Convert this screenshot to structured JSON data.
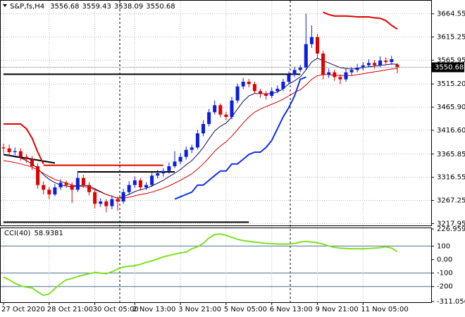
{
  "chart_data": {
    "type": "candlestick",
    "title": "S&P,fs,H4",
    "up_color": "#0a1ee0",
    "down_color": "#e00000",
    "ylim": [
      3214,
      3694
    ],
    "yticks": [
      3664.55,
      3615.25,
      3565.95,
      {
        "value": 3515.2,
        "label": "3515.20"
      },
      {
        "value": 3465.9,
        "label": "3465.90"
      },
      {
        "value": 3416.6,
        "label": "3416.60"
      },
      3365.85,
      3316.55,
      3267.25,
      3217.95
    ],
    "grid": true,
    "xlabels": [
      {
        "at": 0,
        "label": "27 Oct 2020"
      },
      {
        "at": 8,
        "label": "28 Oct 21:00"
      },
      {
        "at": 16,
        "label": "30 Oct 05:00"
      },
      {
        "at": 23,
        "label": "2 Nov 13:00"
      },
      {
        "at": 31,
        "label": "3 Nov 21:00"
      },
      {
        "at": 39,
        "label": "5 Nov 05:00"
      },
      {
        "at": 47,
        "label": "6 Nov 13:00"
      },
      {
        "at": 55,
        "label": "9 Nov 21:00"
      },
      {
        "at": 63,
        "label": "11 Nov 05:00"
      }
    ],
    "candles": [
      [
        3380,
        3388,
        3368,
        3378
      ],
      [
        3378,
        3386,
        3362,
        3370
      ],
      [
        3370,
        3380,
        3364,
        3372
      ],
      [
        3372,
        3378,
        3352,
        3360
      ],
      [
        3360,
        3366,
        3347,
        3355
      ],
      [
        3355,
        3362,
        3332,
        3340
      ],
      [
        3340,
        3346,
        3292,
        3300
      ],
      [
        3300,
        3308,
        3280,
        3290
      ],
      [
        3290,
        3296,
        3270,
        3280
      ],
      [
        3280,
        3302,
        3276,
        3295
      ],
      [
        3295,
        3312,
        3290,
        3305
      ],
      [
        3305,
        3310,
        3294,
        3300
      ],
      [
        3300,
        3306,
        3262,
        3290
      ],
      [
        3290,
        3330,
        3285,
        3315
      ],
      [
        3315,
        3322,
        3294,
        3300
      ],
      [
        3300,
        3306,
        3278,
        3285
      ],
      [
        3285,
        3290,
        3250,
        3260
      ],
      [
        3260,
        3272,
        3254,
        3265
      ],
      [
        3265,
        3270,
        3242,
        3255
      ],
      [
        3255,
        3278,
        3248,
        3270
      ],
      [
        3270,
        3276,
        3245,
        3265
      ],
      [
        3265,
        3292,
        3260,
        3285
      ],
      [
        3285,
        3308,
        3280,
        3300
      ],
      [
        3300,
        3318,
        3294,
        3310
      ],
      [
        3310,
        3315,
        3288,
        3295
      ],
      [
        3295,
        3306,
        3290,
        3300
      ],
      [
        3300,
        3326,
        3296,
        3320
      ],
      [
        3320,
        3332,
        3314,
        3325
      ],
      [
        3325,
        3336,
        3318,
        3330
      ],
      [
        3330,
        3348,
        3324,
        3340
      ],
      [
        3340,
        3372,
        3336,
        3350
      ],
      [
        3350,
        3368,
        3344,
        3360
      ],
      [
        3360,
        3382,
        3354,
        3375
      ],
      [
        3375,
        3386,
        3368,
        3380
      ],
      [
        3380,
        3418,
        3376,
        3410
      ],
      [
        3410,
        3438,
        3404,
        3430
      ],
      [
        3430,
        3462,
        3425,
        3455
      ],
      [
        3455,
        3480,
        3450,
        3470
      ],
      [
        3470,
        3474,
        3444,
        3450
      ],
      [
        3450,
        3456,
        3438,
        3445
      ],
      [
        3445,
        3488,
        3440,
        3480
      ],
      [
        3480,
        3516,
        3474,
        3510
      ],
      [
        3510,
        3528,
        3504,
        3520
      ],
      [
        3520,
        3526,
        3508,
        3515
      ],
      [
        3515,
        3520,
        3494,
        3500
      ],
      [
        3500,
        3505,
        3486,
        3495
      ],
      [
        3495,
        3500,
        3482,
        3490
      ],
      [
        3490,
        3508,
        3485,
        3500
      ],
      [
        3500,
        3512,
        3496,
        3505
      ],
      [
        3505,
        3526,
        3500,
        3520
      ],
      [
        3520,
        3542,
        3515,
        3535
      ],
      [
        3535,
        3552,
        3530,
        3545
      ],
      [
        3545,
        3556,
        3540,
        3550
      ],
      [
        3550,
        3665,
        3545,
        3600
      ],
      [
        3600,
        3640,
        3592,
        3615
      ],
      [
        3615,
        3622,
        3570,
        3580
      ],
      [
        3580,
        3586,
        3525,
        3535
      ],
      [
        3535,
        3548,
        3528,
        3540
      ],
      [
        3540,
        3546,
        3522,
        3530
      ],
      [
        3530,
        3536,
        3515,
        3525
      ],
      [
        3525,
        3548,
        3520,
        3540
      ],
      [
        3540,
        3552,
        3534,
        3545
      ],
      [
        3545,
        3558,
        3540,
        3550
      ],
      [
        3550,
        3562,
        3544,
        3555
      ],
      [
        3555,
        3568,
        3550,
        3560
      ],
      [
        3560,
        3566,
        3548,
        3555
      ],
      [
        3555,
        3574,
        3550,
        3565
      ],
      [
        3565,
        3572,
        3555,
        3562
      ],
      [
        3562,
        3575,
        3556,
        3568
      ],
      [
        3556.68,
        3559.43,
        3538.09,
        3550.68
      ]
    ],
    "overlays": [
      {
        "color": "#0b0b60",
        "width": 1,
        "values": [
          3365,
          3362,
          3360,
          3358,
          3352,
          3345,
          3335,
          3322,
          3312,
          3305,
          3300,
          3298,
          3296,
          3298,
          3300,
          3298,
          3292,
          3286,
          3280,
          3276,
          3272,
          3275,
          3280,
          3286,
          3290,
          3293,
          3298,
          3304,
          3310,
          3318,
          3325,
          3333,
          3343,
          3352,
          3365,
          3380,
          3398,
          3415,
          3425,
          3432,
          3445,
          3462,
          3478,
          3490,
          3495,
          3495,
          3494,
          3495,
          3498,
          3505,
          3515,
          3522,
          3530,
          3545,
          3562,
          3570,
          3565,
          3560,
          3555,
          3550,
          3548,
          3547,
          3548,
          3550,
          3552,
          3553,
          3555,
          3556,
          3558,
          3557
        ]
      },
      {
        "color": "#d00000",
        "width": 1,
        "values": [
          3352,
          3350,
          3348,
          3345,
          3342,
          3338,
          3332,
          3325,
          3318,
          3312,
          3308,
          3304,
          3300,
          3298,
          3297,
          3295,
          3290,
          3285,
          3280,
          3276,
          3272,
          3272,
          3274,
          3277,
          3280,
          3282,
          3285,
          3289,
          3293,
          3298,
          3304,
          3310,
          3317,
          3324,
          3334,
          3345,
          3358,
          3372,
          3383,
          3392,
          3404,
          3418,
          3432,
          3445,
          3455,
          3462,
          3467,
          3472,
          3477,
          3483,
          3490,
          3497,
          3503,
          3513,
          3525,
          3533,
          3535,
          3535,
          3534,
          3533,
          3533,
          3533,
          3535,
          3537,
          3539,
          3541,
          3543,
          3545,
          3547,
          3548
        ]
      },
      {
        "color": "#1030f0",
        "width": 2,
        "values": [
          null,
          null,
          null,
          null,
          null,
          null,
          null,
          null,
          null,
          null,
          null,
          null,
          null,
          null,
          null,
          null,
          null,
          null,
          null,
          null,
          null,
          null,
          null,
          null,
          null,
          null,
          null,
          null,
          null,
          null,
          3270,
          3275,
          3280,
          3285,
          3300,
          3300,
          3310,
          3320,
          3330,
          3330,
          3345,
          3345,
          3355,
          3365,
          3370,
          3370,
          3380,
          3395,
          3420,
          3445,
          3465,
          3490,
          3525,
          3530,
          null,
          null,
          null,
          null,
          null,
          null,
          null,
          null,
          null,
          null,
          null,
          null,
          null,
          null,
          null,
          null
        ]
      },
      {
        "color": "#e00000",
        "width": 2,
        "values": [
          3430,
          3430,
          3430,
          3430,
          3420,
          3400,
          3370,
          3345,
          null,
          null,
          null,
          null,
          null,
          null,
          null,
          null,
          null,
          null,
          null,
          null,
          null,
          null,
          null,
          null,
          null,
          null,
          null,
          null,
          null,
          null,
          null,
          null,
          null,
          null,
          null,
          null,
          null,
          null,
          null,
          null,
          null,
          null,
          null,
          null,
          null,
          null,
          null,
          null,
          null,
          null,
          null,
          null,
          null,
          null,
          null,
          null,
          3668,
          3663,
          3660,
          3660,
          3660,
          3659,
          3658,
          3658,
          3658,
          3656,
          3655,
          3650,
          3640,
          3632
        ]
      }
    ],
    "levels": [
      {
        "prices": [
          3536,
          3536
        ],
        "from": 0,
        "to": 52,
        "color": "#000000"
      },
      {
        "prices": [
          3365,
          3347
        ],
        "from": 0,
        "to": 9,
        "color": "#000000"
      },
      {
        "prices": [
          3342,
          3342
        ],
        "from": 7,
        "to": 28,
        "color": "#e00000"
      },
      {
        "prices": [
          3328,
          3328
        ],
        "from": 13,
        "to": 30,
        "color": "#000000"
      },
      {
        "prices": [
          3221,
          3221
        ],
        "from": 0,
        "to": 43,
        "color": "#000000"
      }
    ],
    "cci": {
      "label": "CCI(40)",
      "color": "#80e020",
      "y2lim": [
        -311.0563,
        226.9593
      ],
      "y2ticks": [
        226.9593,
        100,
        {
          "value": 0,
          "label": "0.00"
        },
        -100,
        -200,
        -311.0563
      ],
      "levels": [
        100,
        -100,
        -200
      ],
      "values": [
        -130,
        -150,
        -175,
        -195,
        -205,
        -210,
        -240,
        -265,
        -255,
        -215,
        -180,
        -150,
        -140,
        -125,
        -115,
        -105,
        -95,
        -100,
        -105,
        -90,
        -70,
        -55,
        -50,
        -45,
        -35,
        -20,
        -10,
        5,
        20,
        30,
        40,
        50,
        55,
        80,
        95,
        120,
        160,
        185,
        190,
        180,
        165,
        150,
        140,
        135,
        130,
        125,
        120,
        118,
        115,
        115,
        115,
        120,
        130,
        135,
        130,
        125,
        115,
        100,
        90,
        85,
        82,
        80,
        80,
        80,
        82,
        85,
        88,
        95,
        85,
        58.9381
      ]
    }
  }
}
